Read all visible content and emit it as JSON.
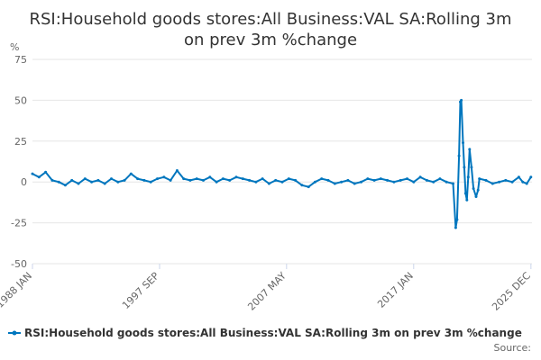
{
  "chart_data": {
    "type": "line",
    "title_lines": [
      "RSI:Household goods stores:All Business:VAL SA:Rolling 3m",
      "on prev 3m %change"
    ],
    "ylabel": "%",
    "ylim": [
      -50,
      75
    ],
    "yticks": [
      75,
      50,
      25,
      0,
      -25,
      -50
    ],
    "xlim": [
      1988.0,
      2026.0
    ],
    "xticks": [
      {
        "label": "1988 JAN",
        "value": 1988.0
      },
      {
        "label": "1997 SEP",
        "value": 1997.67
      },
      {
        "label": "2007 MAY",
        "value": 2007.33
      },
      {
        "label": "2017 JAN",
        "value": 2017.0
      },
      {
        "label": "2025 DEC",
        "value": 2025.92
      }
    ],
    "grid": true,
    "color": "#0076be",
    "series": [
      {
        "name": "RSI:Household goods stores:All Business:VAL SA:Rolling 3m on prev 3m %change",
        "points": [
          [
            1988.0,
            5
          ],
          [
            1988.5,
            3
          ],
          [
            1989.0,
            6
          ],
          [
            1989.5,
            1
          ],
          [
            1990.0,
            0
          ],
          [
            1990.5,
            -2
          ],
          [
            1991.0,
            1
          ],
          [
            1991.5,
            -1
          ],
          [
            1992.0,
            2
          ],
          [
            1992.5,
            0
          ],
          [
            1993.0,
            1
          ],
          [
            1993.5,
            -1
          ],
          [
            1994.0,
            2
          ],
          [
            1994.5,
            0
          ],
          [
            1995.0,
            1
          ],
          [
            1995.5,
            5
          ],
          [
            1996.0,
            2
          ],
          [
            1996.5,
            1
          ],
          [
            1997.0,
            0
          ],
          [
            1997.5,
            2
          ],
          [
            1998.0,
            3
          ],
          [
            1998.5,
            1
          ],
          [
            1999.0,
            7
          ],
          [
            1999.5,
            2
          ],
          [
            2000.0,
            1
          ],
          [
            2000.5,
            2
          ],
          [
            2001.0,
            1
          ],
          [
            2001.5,
            3
          ],
          [
            2002.0,
            0
          ],
          [
            2002.5,
            2
          ],
          [
            2003.0,
            1
          ],
          [
            2003.5,
            3
          ],
          [
            2004.0,
            2
          ],
          [
            2004.5,
            1
          ],
          [
            2005.0,
            0
          ],
          [
            2005.5,
            2
          ],
          [
            2006.0,
            -1
          ],
          [
            2006.5,
            1
          ],
          [
            2007.0,
            0
          ],
          [
            2007.5,
            2
          ],
          [
            2008.0,
            1
          ],
          [
            2008.5,
            -2
          ],
          [
            2009.0,
            -3
          ],
          [
            2009.5,
            0
          ],
          [
            2010.0,
            2
          ],
          [
            2010.5,
            1
          ],
          [
            2011.0,
            -1
          ],
          [
            2011.5,
            0
          ],
          [
            2012.0,
            1
          ],
          [
            2012.5,
            -1
          ],
          [
            2013.0,
            0
          ],
          [
            2013.5,
            2
          ],
          [
            2014.0,
            1
          ],
          [
            2014.5,
            2
          ],
          [
            2015.0,
            1
          ],
          [
            2015.5,
            0
          ],
          [
            2016.0,
            1
          ],
          [
            2016.5,
            2
          ],
          [
            2017.0,
            0
          ],
          [
            2017.5,
            3
          ],
          [
            2018.0,
            1
          ],
          [
            2018.5,
            0
          ],
          [
            2019.0,
            2
          ],
          [
            2019.5,
            0
          ],
          [
            2020.0,
            -1
          ],
          [
            2020.2,
            -28
          ],
          [
            2020.3,
            -23
          ],
          [
            2020.45,
            16
          ],
          [
            2020.55,
            49
          ],
          [
            2020.62,
            50
          ],
          [
            2020.75,
            24
          ],
          [
            2020.85,
            9
          ],
          [
            2020.95,
            -7
          ],
          [
            2021.05,
            -11
          ],
          [
            2021.15,
            3
          ],
          [
            2021.25,
            20
          ],
          [
            2021.4,
            9
          ],
          [
            2021.55,
            -4
          ],
          [
            2021.75,
            -9
          ],
          [
            2021.9,
            -5
          ],
          [
            2022.0,
            2
          ],
          [
            2022.5,
            1
          ],
          [
            2023.0,
            -1
          ],
          [
            2023.5,
            0
          ],
          [
            2024.0,
            1
          ],
          [
            2024.5,
            0
          ],
          [
            2025.0,
            3
          ],
          [
            2025.3,
            0
          ],
          [
            2025.6,
            -1
          ],
          [
            2025.92,
            3
          ]
        ]
      }
    ],
    "legend": {
      "label": "RSI:Household goods stores:All Business:VAL SA:Rolling 3m on prev 3m %change",
      "position": "bottom"
    },
    "source_label": "Source:"
  }
}
